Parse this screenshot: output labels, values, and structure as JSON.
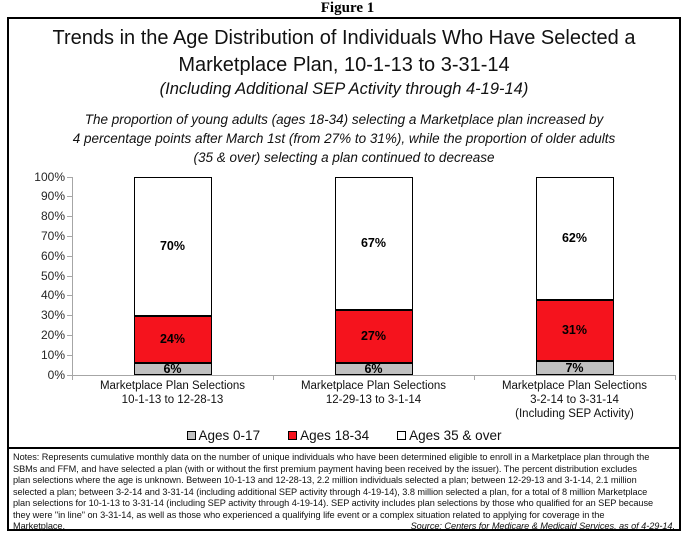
{
  "figure_label": "Figure 1",
  "header": {
    "title_lines": [
      "Trends in the Age Distribution of Individuals Who Have Selected a",
      "Marketplace Plan, 10-1-13 to 3-31-14"
    ],
    "subtitle": "(Including Additional SEP Activity through 4-19-14)",
    "statement_lines": [
      "The proportion of young adults (ages 18-34) selecting a Marketplace plan increased by",
      "4 percentage points after March 1st (from 27% to 31%), while the proportion of older adults",
      "(35 & over) selecting a plan continued to decrease"
    ]
  },
  "chart_data": {
    "type": "bar",
    "stacked": true,
    "ylim": [
      0,
      100
    ],
    "ytick_step": 10,
    "ytick_suffix": "%",
    "grid": false,
    "legend_position": "bottom",
    "axis_color": "#a6a6a6",
    "categories": [
      {
        "lines": [
          "Marketplace Plan Selections",
          "10-1-13 to 12-28-13"
        ]
      },
      {
        "lines": [
          "Marketplace Plan Selections",
          "12-29-13 to 3-1-14"
        ]
      },
      {
        "lines": [
          "Marketplace Plan Selections",
          "3-2-14 to 3-31-14",
          "(Including SEP Activity)"
        ]
      }
    ],
    "series": [
      {
        "name": "Ages 0-17",
        "color": "#c0c0c0",
        "values": [
          6,
          6,
          7
        ],
        "labels": [
          "6%",
          "6%",
          "7%"
        ]
      },
      {
        "name": "Ages 18-34",
        "color": "#f5131d",
        "values": [
          24,
          27,
          31
        ],
        "labels": [
          "24%",
          "27%",
          "31%"
        ]
      },
      {
        "name": "Ages 35 & over",
        "color": "#ffffff",
        "values": [
          70,
          67,
          62
        ],
        "labels": [
          "70%",
          "67%",
          "62%"
        ]
      }
    ]
  },
  "notes": {
    "lines": [
      "Notes:  Represents cumulative monthly data on the number of unique individuals who have been determined eligible to enroll in a Marketplace plan through the",
      "SBMs and FFM, and have selected a plan (with or without the first premium payment having been received by the issuer).  The percent distribution excludes",
      "plan selections where the age is unknown.  Between 10-1-13 and 12-28-13, 2.2 million individuals selected a plan; between 12-29-13 and 3-1-14, 2.1 million",
      "selected a plan; between 3-2-14 and 3-31-14 (including additional SEP activity through 4-19-14), 3.8 million selected a plan, for a total of 8 million Marketplace",
      "plan selections for 10-1-13 to 3-31-14 (including SEP activity through 4-19-14). SEP activity includes plan selections by those who qualified for an SEP because",
      "they were \"in line\" on 3-31-14, as well as those who experienced a qualifying life event or a complex situation related to applying for coverage in the"
    ],
    "last_line_left": "Marketplace.",
    "source": "Source:  Centers for Medicare & Medicaid Services, as of 4-29-14."
  }
}
